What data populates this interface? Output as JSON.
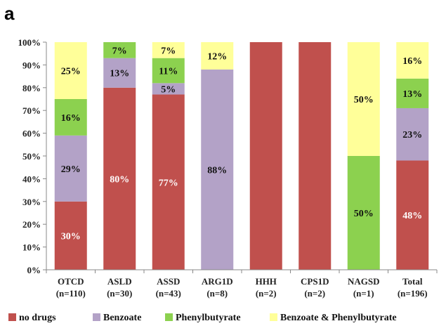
{
  "panel_label": "a",
  "chart_data": {
    "type": "bar",
    "stacked": true,
    "title": "",
    "xlabel": "",
    "ylabel": "",
    "ylim": [
      0,
      100
    ],
    "yticks": [
      "0%",
      "10%",
      "20%",
      "30%",
      "40%",
      "50%",
      "60%",
      "70%",
      "80%",
      "90%",
      "100%"
    ],
    "categories": [
      [
        "OTCD",
        "(n=110)"
      ],
      [
        "ASLD",
        "(n=30)"
      ],
      [
        "ASSD",
        "(n=43)"
      ],
      [
        "ARG1D",
        "(n=8)"
      ],
      [
        "HHH",
        "(n=2)"
      ],
      [
        "CPS1D",
        "(n=2)"
      ],
      [
        "NAGSD",
        "(n=1)"
      ],
      [
        "Total",
        "(n=196)"
      ]
    ],
    "series": [
      {
        "name": "no drugs",
        "color": "#c0504d",
        "label_color": "#ffffff",
        "values": [
          30,
          80,
          77,
          0,
          100,
          100,
          0,
          48
        ],
        "labels": [
          "30%",
          "80%",
          "77%",
          "",
          "",
          "",
          "",
          "48%"
        ]
      },
      {
        "name": "Benzoate",
        "color": "#b3a2c7",
        "label_color": "#111111",
        "values": [
          29,
          13,
          5,
          88,
          0,
          0,
          0,
          23
        ],
        "labels": [
          "29%",
          "13%",
          "5%",
          "88%",
          "",
          "",
          "",
          "23%"
        ]
      },
      {
        "name": "Phenylbutyrate",
        "color": "#8cd14f",
        "label_color": "#111111",
        "values": [
          16,
          7,
          11,
          0,
          0,
          0,
          50,
          13
        ],
        "labels": [
          "16%",
          "7%",
          "11%",
          "",
          "",
          "",
          "50%",
          "13%"
        ]
      },
      {
        "name": "Benzoate & Phenylbutyrate",
        "color": "#ffff99",
        "label_color": "#111111",
        "values": [
          25,
          0,
          7,
          12,
          0,
          0,
          50,
          16
        ],
        "labels": [
          "25%",
          "",
          "7%",
          "12%",
          "",
          "",
          "50%",
          "16%"
        ]
      }
    ],
    "legend_position": "bottom",
    "grid": false
  }
}
